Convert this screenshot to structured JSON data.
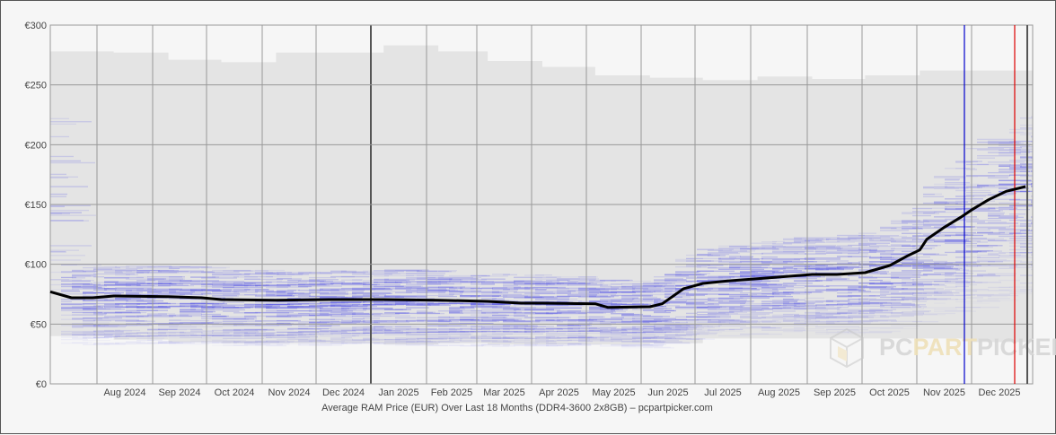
{
  "chart_data": {
    "type": "line",
    "title": "Average RAM Price (EUR) Over Last 18 Months (DDR4-3600 2x8GB) – pcpartpicker.com",
    "xlabel": "",
    "ylabel": "",
    "ylim": [
      0,
      300
    ],
    "y_ticks": [
      "€0",
      "€50",
      "€100",
      "€150",
      "€200",
      "€250",
      "€300"
    ],
    "y_tick_values": [
      0,
      50,
      100,
      150,
      200,
      250,
      300
    ],
    "x_ticks": [
      "Aug 2024",
      "Sep 2024",
      "Oct 2024",
      "Nov 2024",
      "Dec 2024",
      "Jan 2025",
      "Feb 2025",
      "Mar 2025",
      "Apr 2025",
      "May 2025",
      "Jun 2025",
      "Jul 2025",
      "Aug 2025",
      "Sep 2025",
      "Oct 2025",
      "Nov 2025",
      "Dec 2025"
    ],
    "grid": true,
    "legend": "none",
    "watermark": "PCPARTPICKER",
    "series": [
      {
        "name": "Average price",
        "color": "#000000",
        "points": [
          {
            "date": "2024-07-01",
            "value": 77
          },
          {
            "date": "2024-07-08",
            "value": 72
          },
          {
            "date": "2024-07-20",
            "value": 72
          },
          {
            "date": "2024-08-01",
            "value": 73.5
          },
          {
            "date": "2024-09-01",
            "value": 73
          },
          {
            "date": "2024-09-20",
            "value": 72
          },
          {
            "date": "2024-10-01",
            "value": 70.5
          },
          {
            "date": "2024-11-01",
            "value": 70
          },
          {
            "date": "2024-12-01",
            "value": 70.5
          },
          {
            "date": "2025-01-01",
            "value": 70.5
          },
          {
            "date": "2025-02-01",
            "value": 70
          },
          {
            "date": "2025-03-01",
            "value": 69
          },
          {
            "date": "2025-03-20",
            "value": 67.5
          },
          {
            "date": "2025-04-01",
            "value": 67.5
          },
          {
            "date": "2025-05-01",
            "value": 67
          },
          {
            "date": "2025-05-08",
            "value": 64
          },
          {
            "date": "2025-06-01",
            "value": 64.5
          },
          {
            "date": "2025-06-08",
            "value": 67
          },
          {
            "date": "2025-06-20",
            "value": 79.5
          },
          {
            "date": "2025-07-01",
            "value": 84
          },
          {
            "date": "2025-07-15",
            "value": 86
          },
          {
            "date": "2025-08-01",
            "value": 88
          },
          {
            "date": "2025-09-01",
            "value": 91.5
          },
          {
            "date": "2025-09-15",
            "value": 91.5
          },
          {
            "date": "2025-10-01",
            "value": 93
          },
          {
            "date": "2025-10-15",
            "value": 99
          },
          {
            "date": "2025-10-25",
            "value": 107
          },
          {
            "date": "2025-11-01",
            "value": 112
          },
          {
            "date": "2025-11-05",
            "value": 121
          },
          {
            "date": "2025-11-15",
            "value": 131
          },
          {
            "date": "2025-11-25",
            "value": 140
          },
          {
            "date": "2025-12-01",
            "value": 146
          },
          {
            "date": "2025-12-10",
            "value": 154
          },
          {
            "date": "2025-12-20",
            "value": 161
          },
          {
            "date": "2025-12-31",
            "value": 165
          }
        ]
      },
      {
        "name": "Max price envelope",
        "color": "#e4e4e4",
        "points": [
          {
            "date": "2024-07-01",
            "value": 278
          },
          {
            "date": "2024-08-01",
            "value": 277
          },
          {
            "date": "2024-09-01",
            "value": 271
          },
          {
            "date": "2024-10-01",
            "value": 269
          },
          {
            "date": "2024-11-01",
            "value": 277
          },
          {
            "date": "2024-12-01",
            "value": 277
          },
          {
            "date": "2025-01-01",
            "value": 283
          },
          {
            "date": "2025-02-01",
            "value": 278
          },
          {
            "date": "2025-03-01",
            "value": 270
          },
          {
            "date": "2025-04-01",
            "value": 265
          },
          {
            "date": "2025-05-01",
            "value": 258
          },
          {
            "date": "2025-06-01",
            "value": 256
          },
          {
            "date": "2025-07-01",
            "value": 254
          },
          {
            "date": "2025-08-01",
            "value": 257
          },
          {
            "date": "2025-09-01",
            "value": 255
          },
          {
            "date": "2025-10-01",
            "value": 258
          },
          {
            "date": "2025-11-01",
            "value": 262
          },
          {
            "date": "2025-12-01",
            "value": 262
          }
        ]
      },
      {
        "name": "Min price envelope",
        "color": "#e4e4e4",
        "points": [
          {
            "date": "2024-07-01",
            "value": 40
          },
          {
            "date": "2024-08-01",
            "value": 37
          },
          {
            "date": "2024-09-01",
            "value": 35
          },
          {
            "date": "2024-10-01",
            "value": 34
          },
          {
            "date": "2024-11-01",
            "value": 34
          },
          {
            "date": "2024-12-01",
            "value": 34
          },
          {
            "date": "2025-01-01",
            "value": 33
          },
          {
            "date": "2025-02-01",
            "value": 34
          },
          {
            "date": "2025-03-01",
            "value": 33
          },
          {
            "date": "2025-04-01",
            "value": 33
          },
          {
            "date": "2025-05-01",
            "value": 33
          },
          {
            "date": "2025-06-01",
            "value": 34
          },
          {
            "date": "2025-07-01",
            "value": 38
          },
          {
            "date": "2025-08-01",
            "value": 38
          },
          {
            "date": "2025-09-01",
            "value": 38
          },
          {
            "date": "2025-10-01",
            "value": 38
          },
          {
            "date": "2025-11-01",
            "value": 38
          },
          {
            "date": "2025-12-01",
            "value": 35
          }
        ]
      }
    ],
    "markers": [
      {
        "name": "blue-marker",
        "color": "#0000cc",
        "position": "mid Nov 2025"
      },
      {
        "name": "red-marker",
        "color": "#dd0000",
        "position": "late Dec 2025"
      },
      {
        "name": "year-divider",
        "color": "#555555",
        "position": "Jan 2025"
      },
      {
        "name": "end-marker",
        "color": "#555555",
        "position": "end Dec 2025"
      }
    ]
  },
  "caption": "Average RAM Price (EUR) Over Last 18 Months (DDR4-3600 2x8GB) – pcpartpicker.com",
  "watermark": {
    "pc": "PC",
    "part": "PART",
    "picker": "PICKER"
  },
  "colors": {
    "background": "#f6f6f6",
    "plot_fill": "#e4e4e4",
    "grid": "#999999",
    "line": "#000000",
    "density": "#5a5ae6",
    "blue_marker": "#0000cc",
    "red_marker": "#dd0000"
  }
}
